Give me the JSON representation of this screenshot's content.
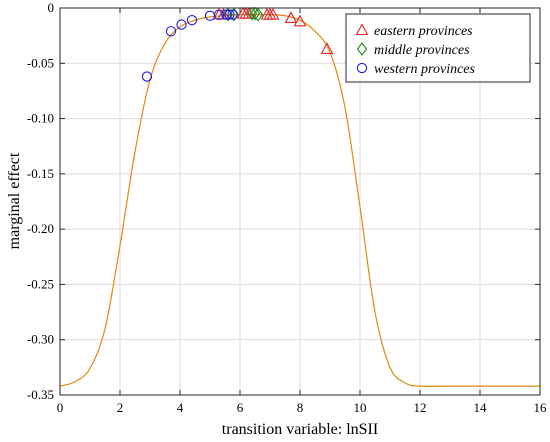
{
  "chart_data": {
    "type": "scatter",
    "title": "",
    "xlabel": "transition variable: lnSII",
    "ylabel": "marginal effect",
    "xlim": [
      0,
      16
    ],
    "ylim": [
      -0.35,
      0
    ],
    "xticks": [
      0,
      2,
      4,
      6,
      8,
      10,
      12,
      14,
      16
    ],
    "xtick_labels": [
      "0",
      "2",
      "4",
      "6",
      "8",
      "10",
      "12",
      "14",
      "16"
    ],
    "yticks": [
      0,
      -0.05,
      -0.1,
      -0.15,
      -0.2,
      -0.25,
      -0.3,
      -0.35
    ],
    "ytick_labels": [
      "0",
      "-0.05",
      "-0.10",
      "-0.15",
      "-0.20",
      "-0.25",
      "-0.30",
      "-0.35"
    ],
    "grid": true,
    "legend_position": "top-right",
    "curve": {
      "color": "#e08a14",
      "x": [
        0,
        0.5,
        1,
        1.5,
        2,
        2.5,
        3,
        3.5,
        4,
        4.5,
        5,
        5.5,
        6,
        6.5,
        7,
        7.5,
        8,
        8.5,
        9,
        9.5,
        10,
        10.5,
        11,
        11.5,
        12,
        13,
        14,
        15,
        16
      ],
      "y": [
        -0.342,
        -0.338,
        -0.326,
        -0.29,
        -0.215,
        -0.13,
        -0.065,
        -0.032,
        -0.017,
        -0.011,
        -0.008,
        -0.007,
        -0.006,
        -0.006,
        -0.006,
        -0.007,
        -0.011,
        -0.021,
        -0.04,
        -0.09,
        -0.18,
        -0.275,
        -0.325,
        -0.339,
        -0.342,
        -0.342,
        -0.342,
        -0.342,
        -0.342
      ]
    },
    "series": [
      {
        "name": "eastern provinces",
        "marker": "triangle",
        "color": "#e8232a",
        "x": [
          5.3,
          5.45,
          6.1,
          6.2,
          6.3,
          6.9,
          7.0,
          7.1,
          7.7,
          8.0,
          8.9
        ],
        "y": [
          -0.006,
          -0.006,
          -0.005,
          -0.005,
          -0.005,
          -0.006,
          -0.006,
          -0.006,
          -0.009,
          -0.012,
          -0.037
        ]
      },
      {
        "name": "middle provinces",
        "marker": "diamond",
        "color": "#1c8a1c",
        "x": [
          5.6,
          5.8,
          6.4,
          6.5,
          6.6
        ],
        "y": [
          -0.006,
          -0.006,
          -0.005,
          -0.005,
          -0.006
        ]
      },
      {
        "name": "western provinces",
        "marker": "circle",
        "color": "#1f1fd6",
        "x": [
          2.9,
          3.7,
          4.05,
          4.4,
          5.0,
          5.3,
          5.55,
          5.65,
          5.75
        ],
        "y": [
          -0.062,
          -0.021,
          -0.015,
          -0.011,
          -0.007,
          -0.006,
          -0.006,
          -0.006,
          -0.006
        ]
      }
    ]
  }
}
